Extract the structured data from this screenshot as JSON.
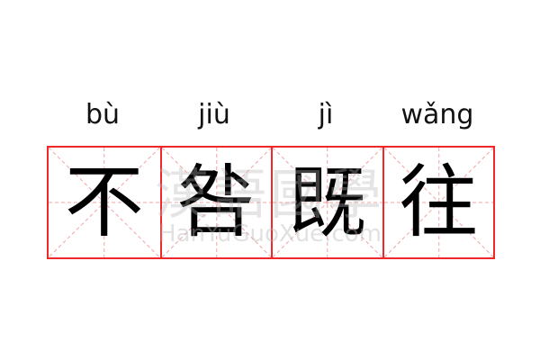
{
  "pinyin": [
    "bù",
    "jiù",
    "jì",
    "wǎng"
  ],
  "characters": [
    "不",
    "咎",
    "既",
    "往"
  ],
  "watermark": {
    "logo_text": "漢語國學",
    "site": "HanYuGuoXue.com"
  },
  "colors": {
    "grid_border": "#f0282a",
    "guide_lines": "#f4a3a3",
    "text": "#000000"
  }
}
